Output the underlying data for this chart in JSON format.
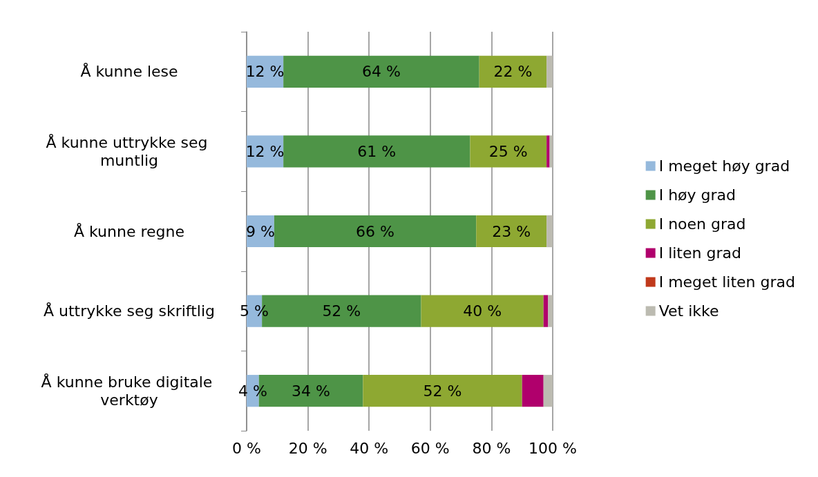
{
  "chart_data": {
    "type": "bar",
    "orientation": "horizontal",
    "stacked": true,
    "categories": [
      "Å kunne lese",
      "Å kunne uttrykke seg muntlig",
      "Å kunne regne",
      "Å uttrykke seg skriftlig",
      "Å kunne bruke digitale verktøy"
    ],
    "series": [
      {
        "name": "I meget høy grad",
        "color": "#95b9dc",
        "values": [
          12,
          12,
          9,
          5,
          4
        ],
        "value_labels": [
          "12 %",
          "12 %",
          "9 %",
          "5 %",
          "4 %"
        ]
      },
      {
        "name": "I høy grad",
        "color": "#4e9447",
        "values": [
          64,
          61,
          66,
          52,
          34
        ],
        "value_labels": [
          "64 %",
          "61 %",
          "66 %",
          "52 %",
          "34 %"
        ]
      },
      {
        "name": "I noen grad",
        "color": "#8ea832",
        "values": [
          22,
          25,
          23,
          40,
          52
        ],
        "value_labels": [
          "22 %",
          "25 %",
          "23 %",
          "40 %",
          "52 %"
        ]
      },
      {
        "name": "I liten grad",
        "color": "#b0006c",
        "values": [
          0,
          1,
          0,
          1.5,
          7
        ]
      },
      {
        "name": "I meget liten grad",
        "color": "#c0391b",
        "values": [
          0,
          0,
          0,
          0,
          0
        ]
      },
      {
        "name": "Vet ikke",
        "color": "#bcbbb1",
        "values": [
          2,
          1,
          2,
          1.5,
          3
        ]
      }
    ],
    "xlim": [
      0,
      100
    ],
    "xticks": [
      {
        "value": 0,
        "label": "0 %"
      },
      {
        "value": 20,
        "label": "20 %"
      },
      {
        "value": 40,
        "label": "40 %"
      },
      {
        "value": 60,
        "label": "60 %"
      },
      {
        "value": 80,
        "label": "80 %"
      },
      {
        "value": 100,
        "label": "100 %"
      }
    ],
    "grid": "x",
    "legend": "right"
  }
}
